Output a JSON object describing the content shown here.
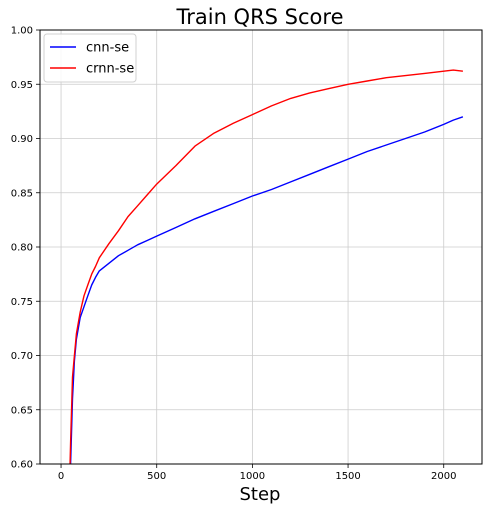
{
  "chart_data": {
    "type": "line",
    "title": "Train QRS Score",
    "xlabel": "Step",
    "ylabel": "",
    "xlim": [
      -110,
      2200
    ],
    "ylim": [
      0.6,
      1.0
    ],
    "xticks": [
      0,
      500,
      1000,
      1500,
      2000
    ],
    "yticks": [
      0.6,
      0.65,
      0.7,
      0.75,
      0.8,
      0.85,
      0.9,
      0.95,
      1.0
    ],
    "grid": true,
    "legend_position": "top-left",
    "series": [
      {
        "name": "cnn-se",
        "color": "#0000ff",
        "x": [
          40,
          50,
          60,
          70,
          80,
          90,
          100,
          120,
          140,
          160,
          180,
          200,
          250,
          300,
          350,
          400,
          450,
          500,
          600,
          700,
          800,
          900,
          1000,
          1100,
          1200,
          1300,
          1400,
          1500,
          1600,
          1700,
          1800,
          1900,
          2000,
          2050,
          2100
        ],
        "y": [
          0.55,
          0.6,
          0.66,
          0.695,
          0.715,
          0.725,
          0.735,
          0.745,
          0.755,
          0.765,
          0.772,
          0.778,
          0.785,
          0.792,
          0.797,
          0.802,
          0.806,
          0.81,
          0.818,
          0.826,
          0.833,
          0.84,
          0.847,
          0.853,
          0.86,
          0.867,
          0.874,
          0.881,
          0.888,
          0.894,
          0.9,
          0.906,
          0.913,
          0.917,
          0.92
        ]
      },
      {
        "name": "crnn-se",
        "color": "#ff0000",
        "x": [
          40,
          50,
          60,
          70,
          80,
          90,
          100,
          120,
          140,
          160,
          180,
          200,
          250,
          300,
          350,
          400,
          450,
          500,
          600,
          700,
          800,
          900,
          1000,
          1100,
          1200,
          1300,
          1400,
          1500,
          1600,
          1700,
          1800,
          1900,
          2000,
          2050,
          2100
        ],
        "y": [
          0.55,
          0.62,
          0.68,
          0.7,
          0.72,
          0.73,
          0.74,
          0.755,
          0.765,
          0.775,
          0.782,
          0.79,
          0.803,
          0.815,
          0.828,
          0.838,
          0.848,
          0.858,
          0.875,
          0.893,
          0.905,
          0.914,
          0.922,
          0.93,
          0.937,
          0.942,
          0.946,
          0.95,
          0.953,
          0.956,
          0.958,
          0.96,
          0.962,
          0.963,
          0.962
        ]
      }
    ]
  }
}
